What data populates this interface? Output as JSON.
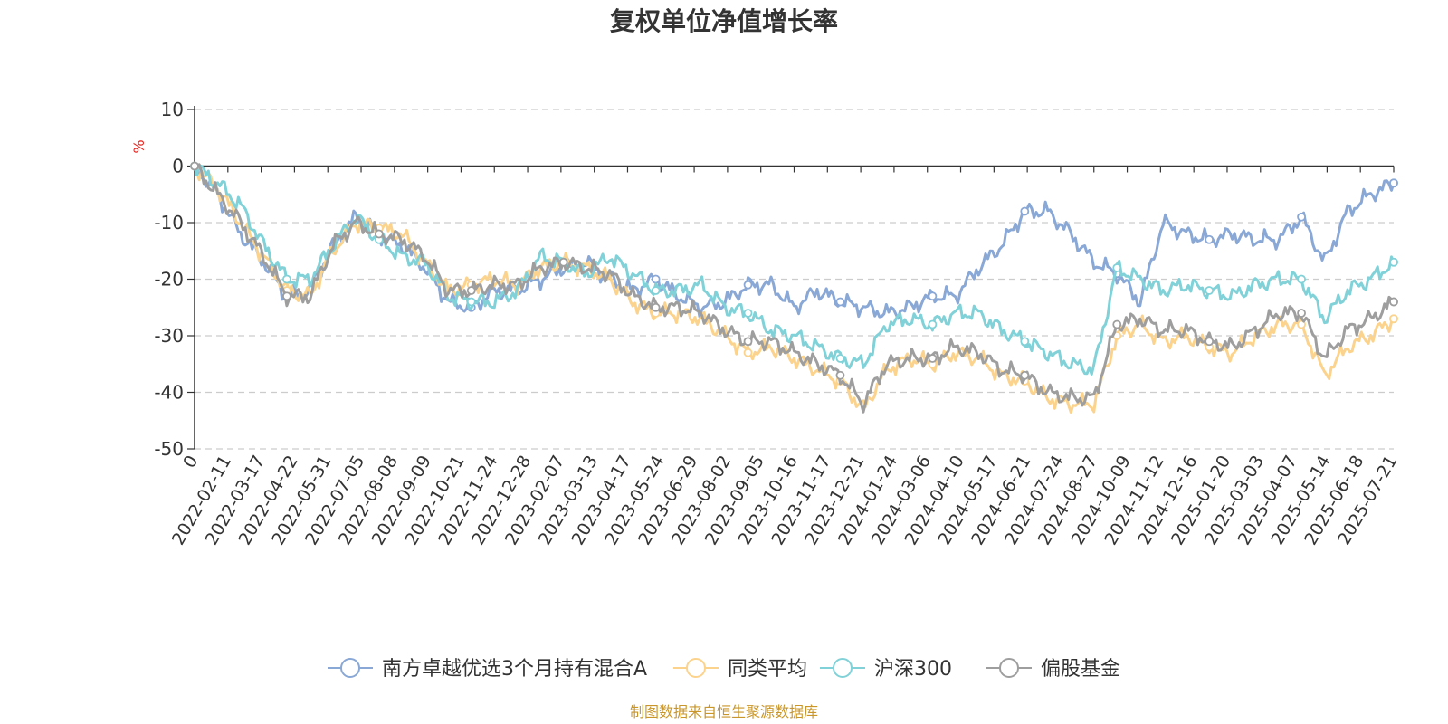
{
  "chart_data": {
    "type": "line",
    "title": "复权单位净值增长率",
    "y_unit": "%",
    "ylim": [
      -50,
      10
    ],
    "y_ticks": [
      10,
      0,
      -10,
      -20,
      -30,
      -40,
      -50
    ],
    "y_tick_labels": [
      "10",
      "0",
      "-10",
      "-20",
      "-30",
      "-40",
      "-50"
    ],
    "grid": true,
    "legend_position": "bottom",
    "x_tick_labels": [
      "0",
      "2022-02-11",
      "2022-03-17",
      "2022-04-22",
      "2022-05-31",
      "2022-07-05",
      "2022-08-08",
      "2022-09-09",
      "2022-10-21",
      "2022-11-24",
      "2022-12-28",
      "2023-02-07",
      "2023-03-13",
      "2023-04-17",
      "2023-05-24",
      "2023-06-29",
      "2023-08-02",
      "2023-09-05",
      "2023-10-16",
      "2023-11-17",
      "2023-12-21",
      "2024-01-24",
      "2024-03-06",
      "2024-04-10",
      "2024-05-17",
      "2024-06-21",
      "2024-07-24",
      "2024-08-27",
      "2024-10-09",
      "2024-11-12",
      "2024-12-16",
      "2025-01-20",
      "2025-03-03",
      "2025-04-07",
      "2025-05-14",
      "2025-06-18",
      "2025-07-21"
    ],
    "series": [
      {
        "name": "南方卓越优选3个月持有混合A",
        "color": "#8aa8d6",
        "values": [
          0,
          -5,
          -12,
          -17,
          -23,
          -22,
          -14,
          -9,
          -12,
          -14,
          -18,
          -24,
          -25,
          -22,
          -22,
          -20,
          -18,
          -17,
          -20,
          -22,
          -20,
          -23,
          -25,
          -24,
          -21,
          -21,
          -25,
          -22,
          -24,
          -25,
          -26,
          -25,
          -23,
          -23,
          -18,
          -14,
          -8,
          -8,
          -12,
          -17,
          -19,
          -24,
          -10,
          -12,
          -13,
          -12,
          -13,
          -13,
          -9,
          -17,
          -8,
          -5,
          -3
        ]
      },
      {
        "name": "同类平均",
        "color": "#fbd38d",
        "values": [
          0,
          -4,
          -10,
          -16,
          -22,
          -23,
          -15,
          -10,
          -11,
          -12,
          -17,
          -22,
          -21,
          -20,
          -21,
          -18,
          -17,
          -18,
          -20,
          -24,
          -26,
          -26,
          -27,
          -30,
          -33,
          -32,
          -34,
          -36,
          -38,
          -43,
          -36,
          -34,
          -35,
          -33,
          -34,
          -37,
          -38,
          -41,
          -42,
          -42,
          -30,
          -28,
          -31,
          -30,
          -32,
          -33,
          -30,
          -28,
          -28,
          -37,
          -32,
          -30,
          -27
        ]
      },
      {
        "name": "沪深300",
        "color": "#80d2d8",
        "values": [
          0,
          -3,
          -7,
          -14,
          -20,
          -20,
          -14,
          -9,
          -13,
          -16,
          -17,
          -23,
          -24,
          -24,
          -22,
          -16,
          -17,
          -19,
          -16,
          -19,
          -22,
          -22,
          -21,
          -25,
          -26,
          -29,
          -30,
          -32,
          -34,
          -35,
          -28,
          -27,
          -28,
          -26,
          -26,
          -29,
          -31,
          -33,
          -35,
          -36,
          -18,
          -20,
          -22,
          -21,
          -22,
          -23,
          -21,
          -20,
          -20,
          -27,
          -22,
          -20,
          -17
        ]
      },
      {
        "name": "偏股基金",
        "color": "#9e9e9e",
        "values": [
          0,
          -5,
          -10,
          -16,
          -23,
          -23,
          -14,
          -10,
          -12,
          -13,
          -16,
          -22,
          -22,
          -21,
          -21,
          -18,
          -17,
          -18,
          -19,
          -23,
          -25,
          -25,
          -26,
          -29,
          -31,
          -31,
          -33,
          -35,
          -37,
          -42,
          -35,
          -34,
          -34,
          -32,
          -33,
          -36,
          -37,
          -40,
          -41,
          -41,
          -28,
          -27,
          -29,
          -29,
          -31,
          -32,
          -29,
          -26,
          -26,
          -34,
          -29,
          -27,
          -24
        ]
      }
    ],
    "source": "制图数据来自恒生聚源数据库"
  }
}
